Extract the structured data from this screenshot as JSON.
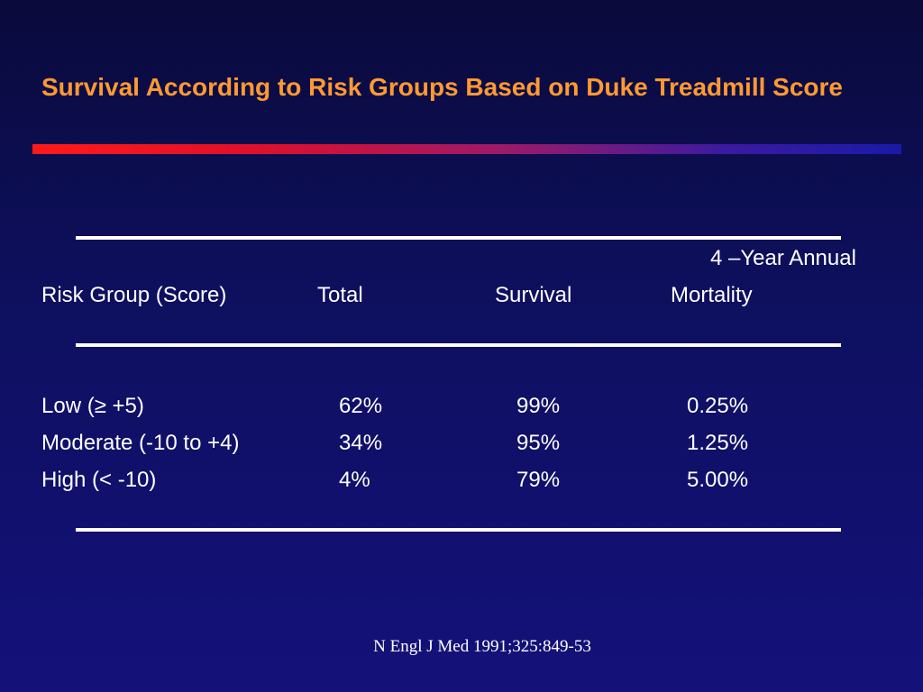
{
  "slide": {
    "title": "Survival According to Risk Groups Based on Duke Treadmill Score",
    "colors": {
      "background": "#0e1060",
      "title": "#ff9933",
      "bar_start": "#ff1a1a",
      "bar_end": "#1a1aa8",
      "text": "#ffffff"
    }
  },
  "table": {
    "header_top": "4 –Year Annual",
    "headers": [
      "Risk Group (Score)",
      "Total",
      "Survival",
      "Mortality"
    ],
    "rows": [
      [
        "Low (≥ +5)",
        "62%",
        "99%",
        "0.25%"
      ],
      [
        "Moderate (-10 to +4)",
        "34%",
        "95%",
        "1.25%"
      ],
      [
        "High (< -10)",
        "4%",
        "79%",
        "5.00%"
      ]
    ]
  },
  "source": "N Engl J Med 1991;325:849-53"
}
